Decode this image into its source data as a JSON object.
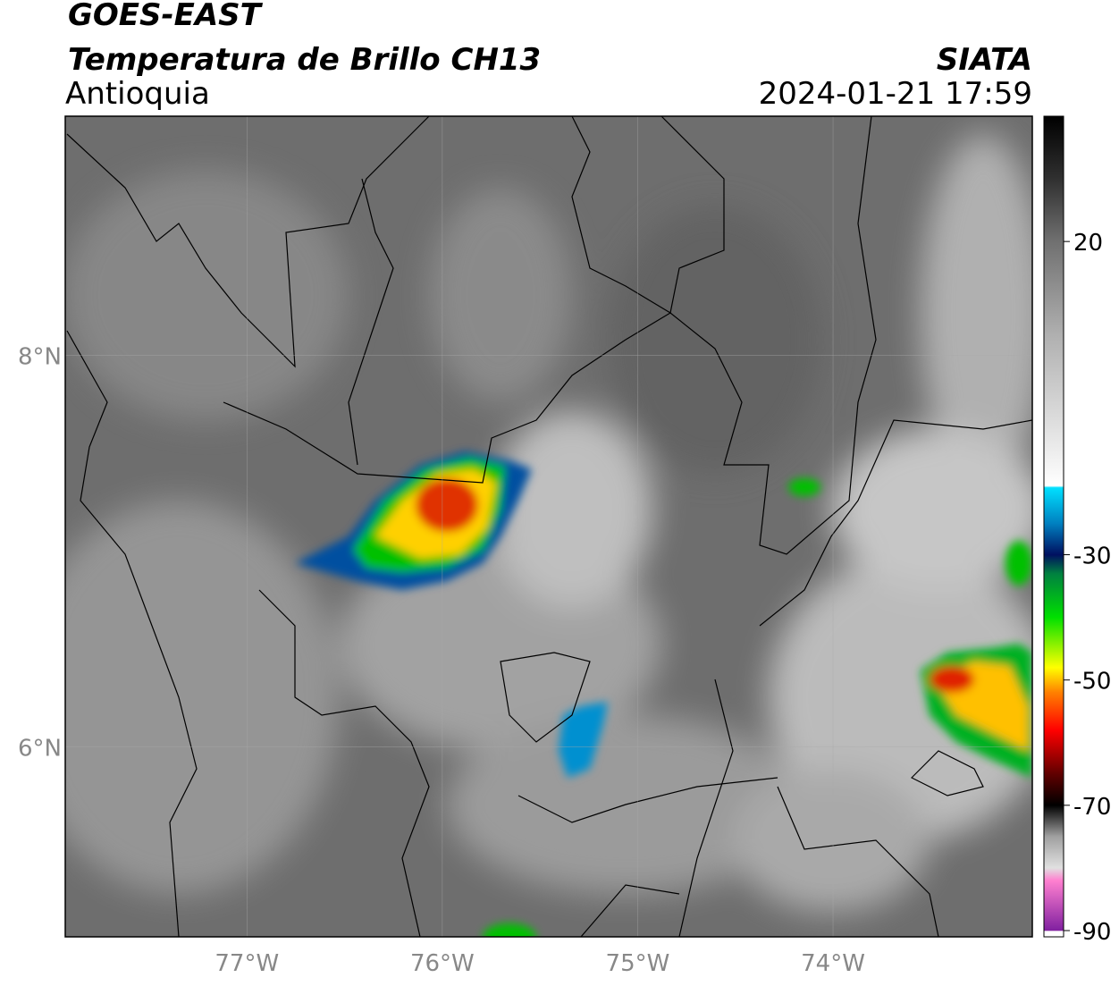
{
  "header": {
    "source": "GOES-EAST",
    "title": "Temperatura de Brillo CH13",
    "region": "Antioquia",
    "agency": "SIATA",
    "datetime": "2024-01-21 17:59"
  },
  "map": {
    "xlim": [
      -77.93,
      -72.98
    ],
    "ylim": [
      5.03,
      9.22
    ],
    "xticks": [
      {
        "value": -77,
        "label": "77°W"
      },
      {
        "value": -76,
        "label": "76°W"
      },
      {
        "value": -75,
        "label": "75°W"
      },
      {
        "value": -74,
        "label": "74°W"
      }
    ],
    "yticks": [
      {
        "value": 8,
        "label": "8°N"
      },
      {
        "value": 6,
        "label": "6°N"
      }
    ]
  },
  "colorbar": {
    "lim": [
      -91,
      40
    ],
    "ticks": [
      20,
      -30,
      -50,
      -70,
      -90
    ],
    "colormap": [
      {
        "value": 40,
        "color": "#000000"
      },
      {
        "value": 30,
        "color": "#303030"
      },
      {
        "value": 20,
        "color": "#707070"
      },
      {
        "value": 5,
        "color": "#b0b0b0"
      },
      {
        "value": -19,
        "color": "#ffffff"
      },
      {
        "value": -19.3,
        "color": "#00e0ff"
      },
      {
        "value": -25,
        "color": "#0080c0"
      },
      {
        "value": -30,
        "color": "#001060"
      },
      {
        "value": -33,
        "color": "#008040"
      },
      {
        "value": -40,
        "color": "#00e000"
      },
      {
        "value": -48,
        "color": "#ffff00"
      },
      {
        "value": -52,
        "color": "#ff8000"
      },
      {
        "value": -58,
        "color": "#ff0000"
      },
      {
        "value": -65,
        "color": "#600000"
      },
      {
        "value": -70,
        "color": "#000000"
      },
      {
        "value": -75,
        "color": "#a0a0a0"
      },
      {
        "value": -80,
        "color": "#e0e0e0"
      },
      {
        "value": -82,
        "color": "#ff80d0"
      },
      {
        "value": -90,
        "color": "#8020a0"
      },
      {
        "value": -90.1,
        "color": "#ffffff"
      },
      {
        "value": -91,
        "color": "#ffffff"
      }
    ]
  }
}
